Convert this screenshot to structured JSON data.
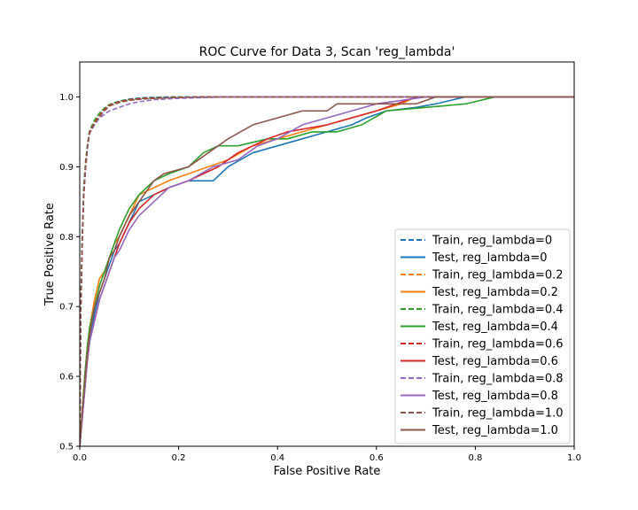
{
  "chart_data": {
    "type": "line",
    "title": "ROC Curve for Data 3, Scan 'reg_lambda'",
    "xlabel": "False Positive Rate",
    "ylabel": "True Positive Rate",
    "xlim": [
      0.0,
      1.0
    ],
    "ylim": [
      0.5,
      1.05
    ],
    "xticks": [
      "0.0",
      "0.2",
      "0.4",
      "0.6",
      "0.8",
      "1.0"
    ],
    "yticks": [
      "0.5",
      "0.6",
      "0.7",
      "0.8",
      "0.9",
      "1.0"
    ],
    "legend_position": "lower right",
    "grid": false,
    "series": [
      {
        "name": "Train, reg_lambda=0",
        "color": "#1f77b4",
        "dash": "dashed",
        "x": [
          0.0,
          0.002,
          0.005,
          0.008,
          0.012,
          0.016,
          0.02,
          0.03,
          0.04,
          0.05,
          0.06,
          0.08,
          0.1,
          0.13,
          0.18,
          0.25,
          0.33,
          1.0
        ],
        "y": [
          0.5,
          0.7,
          0.8,
          0.86,
          0.9,
          0.93,
          0.95,
          0.965,
          0.975,
          0.983,
          0.989,
          0.994,
          0.997,
          0.999,
          1.0,
          1.0,
          1.0,
          1.0
        ]
      },
      {
        "name": "Test, reg_lambda=0",
        "color": "#1f77b4",
        "dash": "solid",
        "x": [
          0.0,
          0.005,
          0.01,
          0.015,
          0.02,
          0.03,
          0.04,
          0.05,
          0.06,
          0.07,
          0.08,
          0.1,
          0.12,
          0.15,
          0.18,
          0.22,
          0.27,
          0.3,
          0.35,
          0.4,
          0.45,
          0.5,
          0.55,
          0.58,
          0.62,
          0.68,
          0.72,
          0.75,
          0.78,
          1.0
        ],
        "y": [
          0.5,
          0.54,
          0.58,
          0.62,
          0.65,
          0.69,
          0.72,
          0.74,
          0.76,
          0.78,
          0.79,
          0.82,
          0.85,
          0.86,
          0.87,
          0.88,
          0.88,
          0.9,
          0.92,
          0.93,
          0.94,
          0.95,
          0.96,
          0.97,
          0.98,
          0.985,
          0.99,
          0.995,
          1.0,
          1.0
        ]
      },
      {
        "name": "Train, reg_lambda=0.2",
        "color": "#ff7f0e",
        "dash": "dashed",
        "x": [
          0.0,
          0.002,
          0.005,
          0.008,
          0.012,
          0.016,
          0.02,
          0.03,
          0.04,
          0.05,
          0.06,
          0.08,
          0.1,
          0.13,
          0.18,
          0.25,
          0.3,
          1.0
        ],
        "y": [
          0.5,
          0.69,
          0.79,
          0.86,
          0.9,
          0.93,
          0.95,
          0.964,
          0.974,
          0.982,
          0.988,
          0.993,
          0.996,
          0.998,
          0.999,
          1.0,
          1.0,
          1.0
        ]
      },
      {
        "name": "Test, reg_lambda=0.2",
        "color": "#ff7f0e",
        "dash": "solid",
        "x": [
          0.0,
          0.005,
          0.01,
          0.015,
          0.02,
          0.03,
          0.04,
          0.05,
          0.06,
          0.07,
          0.08,
          0.1,
          0.12,
          0.15,
          0.18,
          0.22,
          0.26,
          0.3,
          0.35,
          0.4,
          0.45,
          0.5,
          0.55,
          0.6,
          0.65,
          0.68,
          1.0
        ],
        "y": [
          0.5,
          0.55,
          0.6,
          0.64,
          0.67,
          0.71,
          0.74,
          0.75,
          0.77,
          0.79,
          0.8,
          0.83,
          0.86,
          0.87,
          0.88,
          0.89,
          0.9,
          0.91,
          0.93,
          0.94,
          0.95,
          0.96,
          0.97,
          0.98,
          0.99,
          1.0,
          1.0
        ]
      },
      {
        "name": "Train, reg_lambda=0.4",
        "color": "#2ca02c",
        "dash": "dashed",
        "x": [
          0.0,
          0.002,
          0.005,
          0.008,
          0.012,
          0.016,
          0.02,
          0.03,
          0.04,
          0.05,
          0.06,
          0.08,
          0.1,
          0.13,
          0.18,
          0.25,
          0.3,
          1.0
        ],
        "y": [
          0.5,
          0.7,
          0.8,
          0.87,
          0.91,
          0.935,
          0.952,
          0.967,
          0.977,
          0.984,
          0.989,
          0.994,
          0.996,
          0.998,
          0.999,
          1.0,
          1.0,
          1.0
        ]
      },
      {
        "name": "Test, reg_lambda=0.4",
        "color": "#2ca02c",
        "dash": "solid",
        "x": [
          0.0,
          0.005,
          0.01,
          0.015,
          0.02,
          0.03,
          0.04,
          0.05,
          0.06,
          0.07,
          0.08,
          0.1,
          0.12,
          0.15,
          0.18,
          0.22,
          0.25,
          0.28,
          0.32,
          0.38,
          0.42,
          0.47,
          0.52,
          0.57,
          0.62,
          0.7,
          0.78,
          0.84,
          1.0
        ],
        "y": [
          0.5,
          0.55,
          0.6,
          0.64,
          0.67,
          0.7,
          0.73,
          0.75,
          0.77,
          0.79,
          0.81,
          0.84,
          0.86,
          0.88,
          0.89,
          0.9,
          0.92,
          0.93,
          0.93,
          0.94,
          0.94,
          0.95,
          0.95,
          0.96,
          0.98,
          0.985,
          0.99,
          1.0,
          1.0
        ]
      },
      {
        "name": "Train, reg_lambda=0.6",
        "color": "#d62728",
        "dash": "dashed",
        "x": [
          0.0,
          0.002,
          0.005,
          0.008,
          0.012,
          0.016,
          0.02,
          0.03,
          0.04,
          0.05,
          0.06,
          0.08,
          0.1,
          0.13,
          0.18,
          0.25,
          0.3,
          1.0
        ],
        "y": [
          0.5,
          0.69,
          0.79,
          0.86,
          0.905,
          0.93,
          0.95,
          0.963,
          0.973,
          0.982,
          0.988,
          0.993,
          0.996,
          0.998,
          0.999,
          1.0,
          1.0,
          1.0
        ]
      },
      {
        "name": "Test, reg_lambda=0.6",
        "color": "#d62728",
        "dash": "solid",
        "x": [
          0.0,
          0.005,
          0.01,
          0.015,
          0.02,
          0.03,
          0.04,
          0.05,
          0.06,
          0.07,
          0.08,
          0.1,
          0.12,
          0.15,
          0.18,
          0.22,
          0.25,
          0.28,
          0.32,
          0.38,
          0.42,
          0.5,
          0.6,
          0.68,
          1.0
        ],
        "y": [
          0.5,
          0.54,
          0.58,
          0.62,
          0.65,
          0.68,
          0.71,
          0.73,
          0.75,
          0.77,
          0.79,
          0.82,
          0.84,
          0.86,
          0.87,
          0.88,
          0.89,
          0.9,
          0.92,
          0.94,
          0.95,
          0.96,
          0.98,
          1.0,
          1.0
        ]
      },
      {
        "name": "Train, reg_lambda=0.8",
        "color": "#9467bd",
        "dash": "dashed",
        "x": [
          0.0,
          0.002,
          0.005,
          0.008,
          0.012,
          0.016,
          0.02,
          0.03,
          0.04,
          0.05,
          0.06,
          0.08,
          0.1,
          0.12,
          0.15,
          0.2,
          0.3,
          1.0
        ],
        "y": [
          0.5,
          0.69,
          0.79,
          0.86,
          0.9,
          0.93,
          0.948,
          0.96,
          0.97,
          0.975,
          0.98,
          0.985,
          0.99,
          0.993,
          0.996,
          0.998,
          1.0,
          1.0
        ]
      },
      {
        "name": "Test, reg_lambda=0.8",
        "color": "#9467bd",
        "dash": "solid",
        "x": [
          0.0,
          0.005,
          0.01,
          0.015,
          0.02,
          0.03,
          0.04,
          0.05,
          0.06,
          0.07,
          0.08,
          0.1,
          0.12,
          0.15,
          0.18,
          0.22,
          0.27,
          0.32,
          0.36,
          0.4,
          0.45,
          0.5,
          0.55,
          0.6,
          0.65,
          0.7,
          1.0
        ],
        "y": [
          0.5,
          0.54,
          0.58,
          0.62,
          0.65,
          0.68,
          0.71,
          0.73,
          0.75,
          0.77,
          0.78,
          0.81,
          0.83,
          0.85,
          0.87,
          0.88,
          0.9,
          0.91,
          0.93,
          0.94,
          0.96,
          0.97,
          0.98,
          0.99,
          0.995,
          1.0,
          1.0
        ]
      },
      {
        "name": "Train, reg_lambda=1.0",
        "color": "#8c564b",
        "dash": "dashed",
        "x": [
          0.0,
          0.002,
          0.005,
          0.008,
          0.012,
          0.016,
          0.02,
          0.03,
          0.04,
          0.05,
          0.06,
          0.08,
          0.1,
          0.13,
          0.18,
          0.25,
          0.3,
          1.0
        ],
        "y": [
          0.5,
          0.69,
          0.79,
          0.86,
          0.9,
          0.93,
          0.948,
          0.962,
          0.972,
          0.98,
          0.987,
          0.992,
          0.995,
          0.997,
          0.999,
          1.0,
          1.0,
          1.0
        ]
      },
      {
        "name": "Test, reg_lambda=1.0",
        "color": "#8c564b",
        "dash": "solid",
        "x": [
          0.0,
          0.005,
          0.01,
          0.015,
          0.02,
          0.03,
          0.04,
          0.05,
          0.06,
          0.07,
          0.08,
          0.1,
          0.12,
          0.15,
          0.17,
          0.22,
          0.26,
          0.3,
          0.35,
          0.4,
          0.45,
          0.5,
          0.52,
          0.6,
          0.68,
          0.72,
          1.0
        ],
        "y": [
          0.5,
          0.55,
          0.59,
          0.63,
          0.66,
          0.7,
          0.72,
          0.74,
          0.77,
          0.78,
          0.8,
          0.83,
          0.85,
          0.88,
          0.89,
          0.9,
          0.92,
          0.94,
          0.96,
          0.97,
          0.98,
          0.98,
          0.99,
          0.99,
          0.99,
          1.0,
          1.0
        ]
      }
    ]
  }
}
